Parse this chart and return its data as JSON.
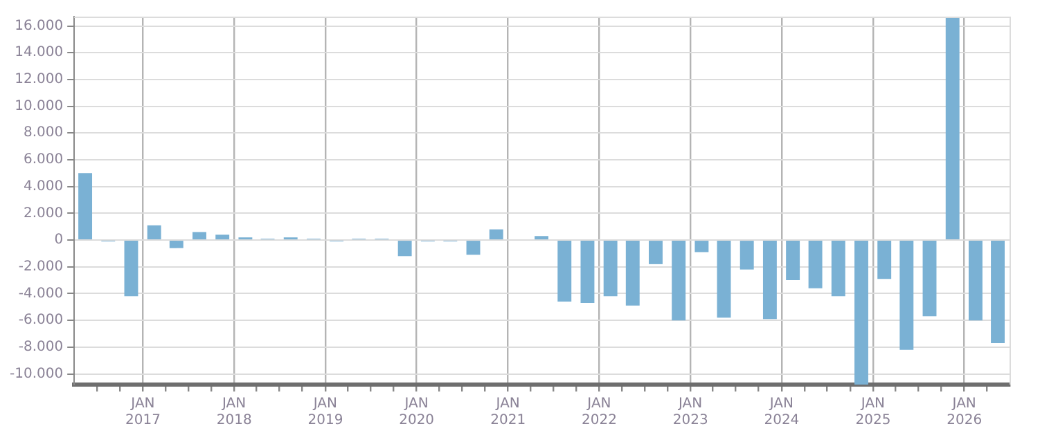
{
  "chart_data": {
    "type": "bar",
    "color": "#7ab1d4",
    "grid": true,
    "x": [
      "2016-05-15",
      "2016-08-15",
      "2016-11-15",
      "2017-02-15",
      "2017-05-15",
      "2017-08-15",
      "2017-11-15",
      "2018-02-15",
      "2018-05-15",
      "2018-08-15",
      "2018-11-15",
      "2019-02-15",
      "2019-05-15",
      "2019-08-15",
      "2019-11-15",
      "2020-02-15",
      "2020-05-15",
      "2020-08-15",
      "2020-11-15",
      "2021-02-15",
      "2021-05-15",
      "2021-08-15",
      "2021-11-15",
      "2022-02-15",
      "2022-05-15",
      "2022-08-15",
      "2022-11-15",
      "2023-02-15",
      "2023-05-15",
      "2023-08-15",
      "2023-11-15",
      "2024-02-15",
      "2024-05-15",
      "2024-08-15",
      "2024-11-15",
      "2025-02-15",
      "2025-05-15",
      "2025-08-15",
      "2025-11-15",
      "2026-02-15",
      "2026-05-15"
    ],
    "values": [
      5000,
      -100,
      -4200,
      1100,
      -600,
      600,
      400,
      200,
      100,
      200,
      100,
      -100,
      100,
      100,
      -1200,
      -100,
      -100,
      -1100,
      800,
      0,
      300,
      -4600,
      -4700,
      -4200,
      -4900,
      -1800,
      -6000,
      -900,
      -5800,
      -2200,
      -5900,
      -3000,
      -3600,
      -4200,
      -10800,
      -2900,
      -8200,
      -5700,
      16700,
      -6000,
      -7700
    ],
    "xlim": [
      "2016-04-01",
      "2026-07-01"
    ],
    "xticks": [
      {
        "value": "2016-07-01",
        "label": null
      },
      {
        "value": "2016-10-01",
        "label": null
      },
      {
        "value": "2017-01-01",
        "label": "JAN 2017"
      },
      {
        "value": "2017-04-01",
        "label": null
      },
      {
        "value": "2017-07-01",
        "label": null
      },
      {
        "value": "2017-10-01",
        "label": null
      },
      {
        "value": "2018-01-01",
        "label": "JAN 2018"
      },
      {
        "value": "2018-04-01",
        "label": null
      },
      {
        "value": "2018-07-01",
        "label": null
      },
      {
        "value": "2018-10-01",
        "label": null
      },
      {
        "value": "2019-01-01",
        "label": "JAN 2019"
      },
      {
        "value": "2019-04-01",
        "label": null
      },
      {
        "value": "2019-07-01",
        "label": null
      },
      {
        "value": "2019-10-01",
        "label": null
      },
      {
        "value": "2020-01-01",
        "label": "JAN 2020"
      },
      {
        "value": "2020-04-01",
        "label": null
      },
      {
        "value": "2020-07-01",
        "label": null
      },
      {
        "value": "2020-10-01",
        "label": null
      },
      {
        "value": "2021-01-01",
        "label": "JAN 2021"
      },
      {
        "value": "2021-04-01",
        "label": null
      },
      {
        "value": "2021-07-01",
        "label": null
      },
      {
        "value": "2021-10-01",
        "label": null
      },
      {
        "value": "2022-01-01",
        "label": "JAN 2022"
      },
      {
        "value": "2022-04-01",
        "label": null
      },
      {
        "value": "2022-07-01",
        "label": null
      },
      {
        "value": "2022-10-01",
        "label": null
      },
      {
        "value": "2023-01-01",
        "label": "JAN 2023"
      },
      {
        "value": "2023-04-01",
        "label": null
      },
      {
        "value": "2023-07-01",
        "label": null
      },
      {
        "value": "2023-10-01",
        "label": null
      },
      {
        "value": "2024-01-01",
        "label": "JAN 2024"
      },
      {
        "value": "2024-04-01",
        "label": null
      },
      {
        "value": "2024-07-01",
        "label": null
      },
      {
        "value": "2024-10-01",
        "label": null
      },
      {
        "value": "2025-01-01",
        "label": "JAN 2025"
      },
      {
        "value": "2025-04-01",
        "label": null
      },
      {
        "value": "2025-07-01",
        "label": null
      },
      {
        "value": "2025-10-01",
        "label": null
      },
      {
        "value": "2026-01-01",
        "label": "JAN 2026"
      },
      {
        "value": "2026-04-01",
        "label": null
      }
    ],
    "ylim": [
      -10800,
      16700
    ],
    "yticks": [
      {
        "value": -10000,
        "label": "-10.000"
      },
      {
        "value": -8000,
        "label": "-8.000"
      },
      {
        "value": -6000,
        "label": "-6.000"
      },
      {
        "value": -4000,
        "label": "-4.000"
      },
      {
        "value": -2000,
        "label": "-2.000"
      },
      0,
      {
        "value": 2000,
        "label": "2.000"
      },
      {
        "value": 4000,
        "label": "4.000"
      },
      {
        "value": 6000,
        "label": "6.000"
      },
      {
        "value": 8000,
        "label": "8.000"
      },
      {
        "value": 10000,
        "label": "10.000"
      },
      {
        "value": 12000,
        "label": "12.000"
      },
      {
        "value": 14000,
        "label": "14.000"
      },
      {
        "value": 16000,
        "label": "16.000"
      }
    ]
  }
}
